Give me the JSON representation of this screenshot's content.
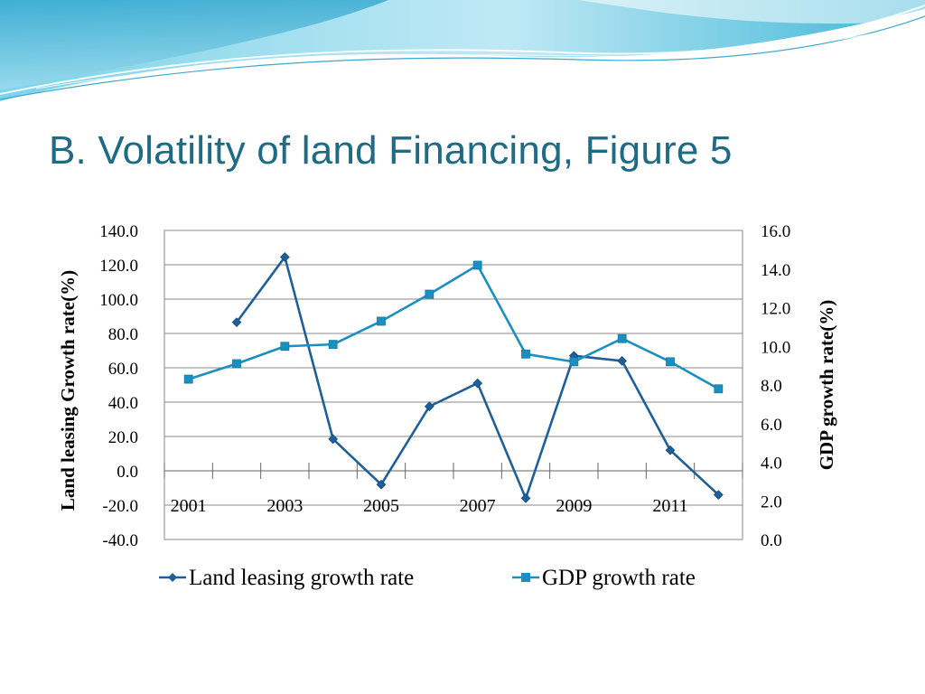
{
  "slide": {
    "title": "B. Volatility of land Financing, Figure 5"
  },
  "colors": {
    "title": "#1f6b85",
    "land_series": "#1f5f99",
    "gdp_series": "#1b8fc0",
    "header_wave": "#3fb6d8"
  },
  "chart_data": {
    "type": "line",
    "title": "",
    "x": [
      2001,
      2002,
      2003,
      2004,
      2005,
      2006,
      2007,
      2008,
      2009,
      2010,
      2011,
      2012
    ],
    "x_tick_labels": [
      "2001",
      "2003",
      "2005",
      "2007",
      "2009",
      "2011"
    ],
    "ylabel_left": "Land leasing Growth rate(%)",
    "ylabel_right": "GDP growth rate(%)",
    "ylim_left": [
      -40,
      140
    ],
    "ylim_right": [
      0,
      16
    ],
    "y_ticks_left": [
      "-40.0",
      "-20.0",
      "0.0",
      "20.0",
      "40.0",
      "60.0",
      "80.0",
      "100.0",
      "120.0",
      "140.0"
    ],
    "y_ticks_right": [
      "0.0",
      "2.0",
      "4.0",
      "6.0",
      "8.0",
      "10.0",
      "12.0",
      "14.0",
      "16.0"
    ],
    "grid": true,
    "legend_position": "bottom",
    "series": [
      {
        "name": "Land leasing growth rate",
        "axis": "left",
        "marker": "diamond",
        "values": [
          null,
          86.5,
          124.5,
          18.5,
          -8.0,
          37.5,
          51.0,
          -16.0,
          67.0,
          64.0,
          12.0,
          -14.0
        ]
      },
      {
        "name": "GDP growth rate",
        "axis": "right",
        "marker": "square",
        "values": [
          8.3,
          9.1,
          10.0,
          10.1,
          11.3,
          12.7,
          14.2,
          9.6,
          9.2,
          10.4,
          9.2,
          7.8
        ]
      }
    ]
  }
}
